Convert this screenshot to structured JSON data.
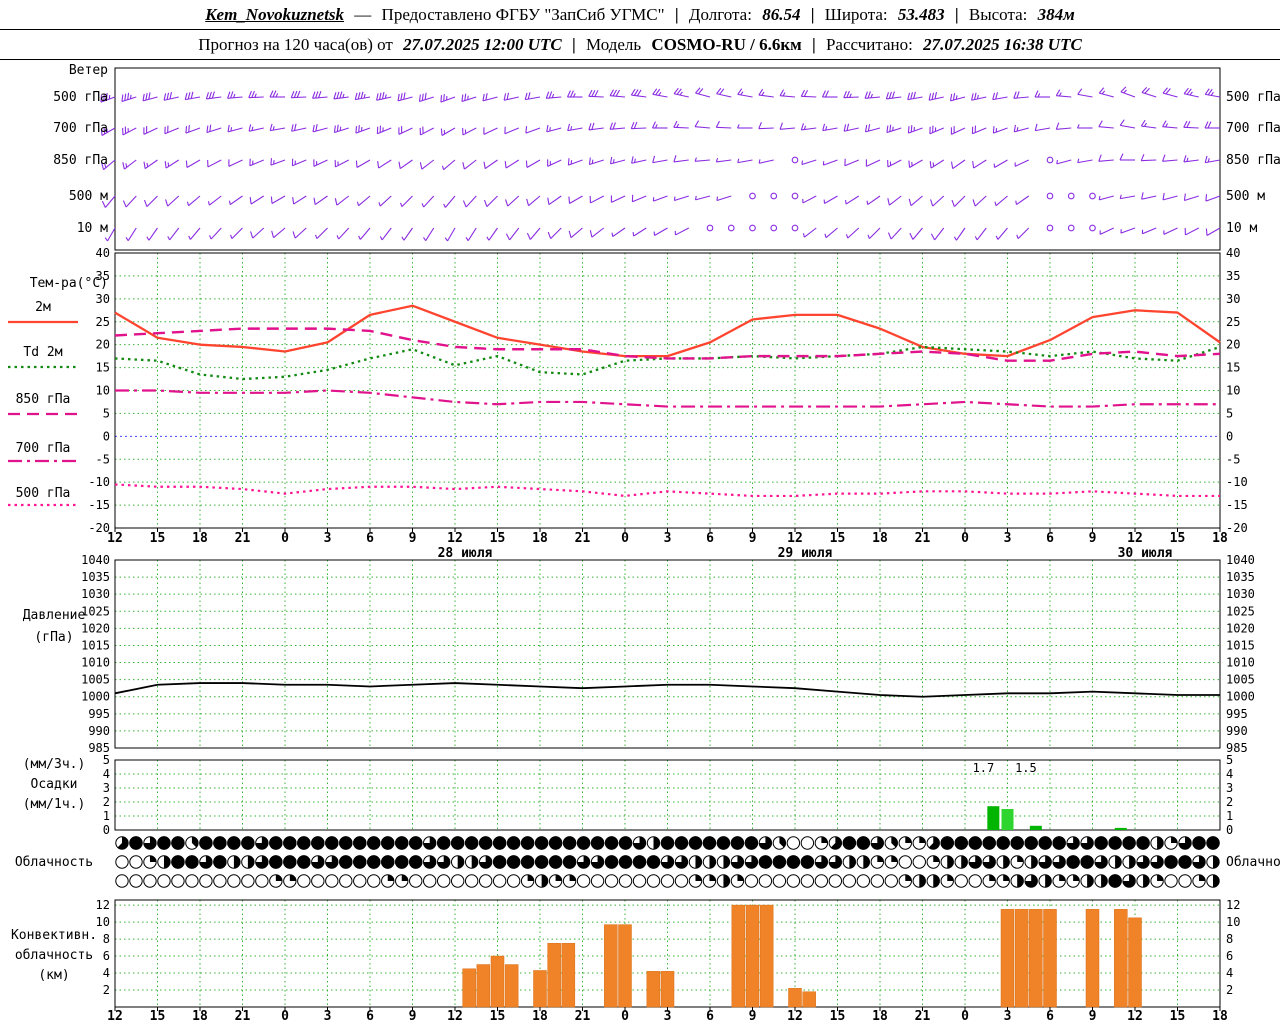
{
  "header": {
    "station": "Kem_Novokuznetsk",
    "dash": "—",
    "provider": "Предоставлено ФГБУ \"ЗапСиб УГМС\"",
    "sep": "|",
    "lon_label": "Долгота:",
    "lon_value": "86.54",
    "lat_label": "Широта:",
    "lat_value": "53.483",
    "alt_label": "Высота:",
    "alt_value": "384м"
  },
  "subheader": {
    "forecast_label": "Прогноз на 120 часа(ов) от",
    "forecast_time": "27.07.2025 12:00 UTC",
    "sep": "|",
    "model_label": "Модель",
    "model_value": "COSMO-RU / 6.6км",
    "calc_label": "Рассчитано:",
    "calc_value": "27.07.2025 16:38 UTC"
  },
  "panels": {
    "wind": {
      "title": "Ветер",
      "levels": [
        "500 гПа",
        "700 гПа",
        "850 гПа",
        "500 м",
        "10 м"
      ]
    },
    "temp": {
      "title": "Тем-ра(°C)",
      "legend": [
        {
          "label": "2м"
        },
        {
          "label": "Td 2м"
        },
        {
          "label": "850 гПа"
        },
        {
          "label": "700 гПа"
        },
        {
          "label": "500 гПа"
        }
      ]
    },
    "pressure": {
      "title_1": "Давление",
      "title_2": "(гПа)"
    },
    "precip": {
      "title_1": "(мм/3ч.)",
      "title_2": "Осадки",
      "title_3": "(мм/1ч.)"
    },
    "cloud": {
      "title": "Облачность"
    },
    "convective": {
      "title_1": "Конвективн.",
      "title_2": "облачность",
      "title_3": "(км)"
    }
  },
  "chart_data": {
    "type": "meteogram",
    "time": {
      "step_hours": 3,
      "total_hours": 78,
      "tick_labels": [
        "12",
        "15",
        "18",
        "21",
        "0",
        "3",
        "6",
        "9",
        "12",
        "15",
        "18",
        "21",
        "0",
        "3",
        "6",
        "9",
        "12",
        "15",
        "18",
        "21",
        "0",
        "3",
        "6",
        "9",
        "12",
        "15",
        "18"
      ],
      "date_labels": [
        {
          "label": "28 июля",
          "tick_index": 8
        },
        {
          "label": "29 июля",
          "tick_index": 16
        },
        {
          "label": "30 июля",
          "tick_index": 24
        }
      ]
    },
    "wind_barbs": {
      "color": "#8a2be2",
      "levels": [
        {
          "name": "500 гПа",
          "dir": [
            250,
            255,
            260,
            265,
            270,
            265,
            260,
            255,
            250,
            255,
            260,
            270,
            275,
            280,
            285,
            280,
            275,
            270,
            265,
            260,
            255,
            260,
            270,
            280,
            290,
            285,
            280
          ],
          "speed": [
            35,
            30,
            30,
            25,
            25,
            30,
            35,
            30,
            25,
            20,
            20,
            25,
            30,
            25,
            20,
            15,
            15,
            20,
            25,
            30,
            25,
            20,
            15,
            10,
            15,
            20,
            25
          ]
        },
        {
          "name": "700 гПа",
          "dir": [
            240,
            245,
            250,
            255,
            260,
            255,
            250,
            245,
            240,
            245,
            250,
            260,
            265,
            270,
            275,
            270,
            265,
            260,
            255,
            250,
            245,
            250,
            260,
            270,
            280,
            275,
            270
          ],
          "speed": [
            25,
            20,
            20,
            15,
            15,
            20,
            25,
            20,
            15,
            10,
            10,
            15,
            20,
            15,
            10,
            5,
            10,
            15,
            20,
            25,
            20,
            15,
            10,
            5,
            10,
            15,
            20
          ]
        },
        {
          "name": "850 гПа",
          "dir": [
            230,
            235,
            240,
            245,
            250,
            245,
            240,
            235,
            230,
            235,
            240,
            250,
            255,
            260,
            265,
            260,
            255,
            250,
            245,
            240,
            235,
            240,
            250,
            260,
            270,
            265,
            260
          ],
          "speed": [
            15,
            15,
            10,
            10,
            15,
            15,
            10,
            10,
            5,
            10,
            10,
            15,
            15,
            10,
            5,
            5,
            0,
            5,
            10,
            15,
            10,
            5,
            0,
            5,
            10,
            10,
            15
          ]
        },
        {
          "name": "500 м",
          "dir": [
            220,
            225,
            230,
            235,
            240,
            235,
            230,
            225,
            220,
            225,
            230,
            240,
            245,
            250,
            255,
            250,
            245,
            240,
            235,
            230,
            225,
            230,
            240,
            250,
            260,
            255,
            250
          ],
          "speed": [
            10,
            10,
            5,
            5,
            10,
            10,
            5,
            5,
            5,
            10,
            10,
            10,
            10,
            5,
            5,
            0,
            0,
            5,
            5,
            10,
            10,
            5,
            0,
            0,
            5,
            10,
            10
          ]
        },
        {
          "name": "10 м",
          "dir": [
            210,
            215,
            220,
            225,
            230,
            225,
            220,
            215,
            210,
            215,
            220,
            230,
            235,
            240,
            245,
            240,
            235,
            230,
            225,
            220,
            215,
            220,
            230,
            240,
            250,
            245,
            240
          ],
          "speed": [
            5,
            5,
            5,
            5,
            10,
            5,
            5,
            5,
            5,
            5,
            10,
            10,
            5,
            5,
            0,
            0,
            0,
            5,
            5,
            10,
            5,
            5,
            0,
            0,
            5,
            5,
            10
          ]
        }
      ]
    },
    "temperature": {
      "ylim": [
        -20,
        40
      ],
      "yticks": [
        40,
        35,
        30,
        25,
        20,
        15,
        10,
        5,
        0,
        -5,
        -10,
        -15,
        -20
      ],
      "series": [
        {
          "name": "2м",
          "style": "solid",
          "color": "#ff4530",
          "width": 2.3,
          "values": [
            27,
            21.5,
            20,
            19.5,
            18.5,
            20.5,
            26.5,
            28.5,
            25,
            21.5,
            20,
            18.5,
            17.5,
            17.5,
            20.5,
            25.5,
            26.5,
            26.5,
            23.5,
            19.5,
            18,
            17.5,
            21,
            26,
            27.5,
            27,
            20.5
          ]
        },
        {
          "name": "Td 2м",
          "style": "dotted",
          "color": "#128a12",
          "width": 2.3,
          "values": [
            17,
            16.5,
            13.5,
            12.5,
            13,
            14.5,
            17,
            19,
            15.5,
            17.5,
            14,
            13.5,
            16.5,
            17,
            17,
            17.5,
            17,
            17.5,
            18,
            19.5,
            19,
            18.5,
            17.5,
            18.5,
            17,
            16.5,
            19.5
          ]
        },
        {
          "name": "850 гПа",
          "style": "dashed",
          "color": "#e0128c",
          "width": 2.4,
          "values": [
            22,
            22.5,
            23,
            23.5,
            23.5,
            23.5,
            23,
            21,
            19.5,
            19,
            19,
            19,
            17.5,
            17,
            17,
            17.5,
            17.5,
            17.5,
            18,
            18.5,
            18,
            16.5,
            16.5,
            18,
            18.5,
            17.5,
            18
          ]
        },
        {
          "name": "700 гПа",
          "style": "dashdot",
          "color": "#e0128c",
          "width": 2.2,
          "values": [
            10,
            10,
            9.5,
            9.5,
            9.5,
            10,
            9.5,
            8.5,
            7.5,
            7,
            7.5,
            7.5,
            7,
            6.5,
            6.5,
            6.5,
            6.5,
            6.5,
            6.5,
            7,
            7.5,
            7,
            6.5,
            6.5,
            7,
            7,
            7
          ]
        },
        {
          "name": "500 гПа",
          "style": "dotted",
          "color": "#ff1493",
          "width": 2.2,
          "values": [
            -10.5,
            -11,
            -11,
            -11.5,
            -12.5,
            -11.5,
            -11,
            -11,
            -11.5,
            -11,
            -11.5,
            -12,
            -13,
            -12,
            -12.5,
            -13,
            -13,
            -12.5,
            -12.5,
            -12,
            -12,
            -12.5,
            -12.5,
            -12,
            -12.5,
            -13,
            -13
          ]
        }
      ]
    },
    "pressure": {
      "ylim": [
        985,
        1040
      ],
      "yticks": [
        1040,
        1035,
        1030,
        1025,
        1020,
        1015,
        1010,
        1005,
        1000,
        995,
        990,
        985
      ],
      "color": "#000000",
      "values": [
        1001,
        1003.5,
        1004,
        1004,
        1003.5,
        1003.5,
        1003,
        1003.5,
        1004,
        1003.5,
        1003,
        1002.5,
        1003,
        1003.5,
        1003.5,
        1003,
        1002.5,
        1001.5,
        1000.5,
        1000,
        1000.5,
        1001,
        1001,
        1001.5,
        1001,
        1000.5,
        1000.5
      ]
    },
    "precip": {
      "ylim": [
        0,
        5
      ],
      "yticks": [
        5,
        4,
        3,
        2,
        1,
        0
      ],
      "color": "#00c000",
      "bars": [
        {
          "t": 62,
          "v": 1.7,
          "color": "#00b400"
        },
        {
          "t": 63,
          "v": 1.5,
          "color": "#2ed52e"
        },
        {
          "t": 65,
          "v": 0.3,
          "color": "#00b400"
        },
        {
          "t": 71,
          "v": 0.15,
          "color": "#00b400"
        }
      ],
      "value_labels": [
        {
          "t": 61.3,
          "text": "1.7"
        },
        {
          "t": 64.3,
          "text": "1.5"
        }
      ]
    },
    "cloud": {
      "row_y": [
        843,
        862,
        881
      ],
      "okta_scale": 8,
      "rows": [
        [
          "5868838888",
          "6888888888",
          "8868888888",
          "8888888648",
          "8888886300",
          "2588632258",
          "8888888866",
          "888842688"
        ],
        [
          "0024886844",
          "6888668888",
          "8866446888",
          "8886688886",
          "6444668888",
          "6644220024",
          "4664246688",
          "644668864"
        ],
        [
          "0000000000",
          "0220000002",
          "2000000002",
          "4220000000",
          "0224200000",
          "0000002442",
          "0022464224",
          "486420024"
        ]
      ]
    },
    "convective": {
      "ylim": [
        0,
        12
      ],
      "yticks": [
        12,
        10,
        8,
        6,
        4,
        2
      ],
      "color": "#f08228",
      "bars": [
        {
          "t": 25,
          "h": 4.5
        },
        {
          "t": 26,
          "h": 5
        },
        {
          "t": 27,
          "h": 6
        },
        {
          "t": 28,
          "h": 5
        },
        {
          "t": 30,
          "h": 4.3
        },
        {
          "t": 31,
          "h": 7.5
        },
        {
          "t": 32,
          "h": 7.5
        },
        {
          "t": 35,
          "h": 9.7
        },
        {
          "t": 36,
          "h": 9.7
        },
        {
          "t": 38,
          "h": 4.2
        },
        {
          "t": 39,
          "h": 4.2
        },
        {
          "t": 44,
          "h": 12
        },
        {
          "t": 45,
          "h": 12
        },
        {
          "t": 46,
          "h": 12
        },
        {
          "t": 48,
          "h": 2.2
        },
        {
          "t": 49,
          "h": 1.8
        },
        {
          "t": 63,
          "h": 11.5
        },
        {
          "t": 64,
          "h": 11.5
        },
        {
          "t": 65,
          "h": 11.5
        },
        {
          "t": 66,
          "h": 11.5
        },
        {
          "t": 69,
          "h": 11.5
        },
        {
          "t": 71,
          "h": 11.5
        },
        {
          "t": 72,
          "h": 10.5
        }
      ]
    }
  }
}
